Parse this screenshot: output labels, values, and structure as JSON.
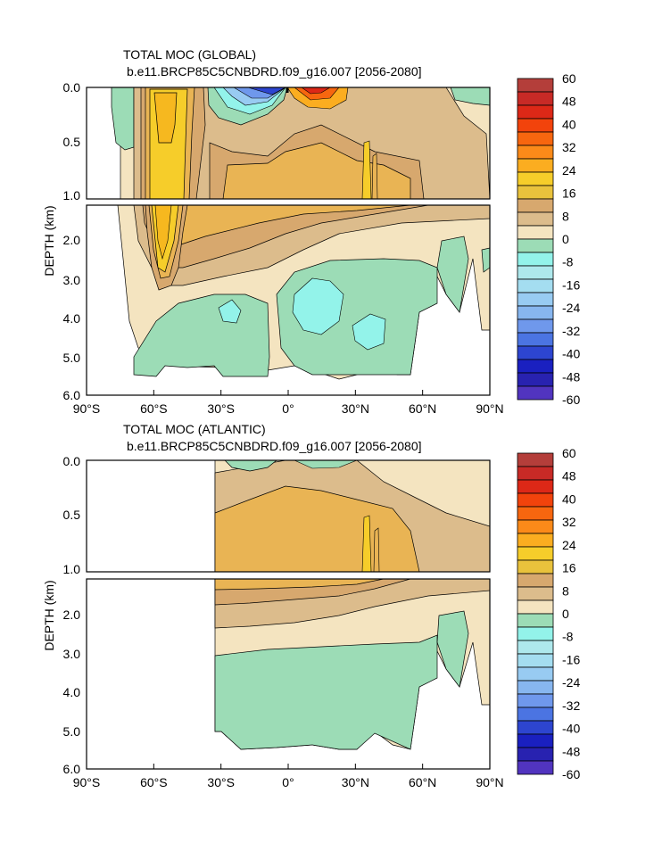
{
  "colors": {
    "colorbar": [
      "#b43e3a",
      "#c82a26",
      "#dd2817",
      "#f2430c",
      "#f7660f",
      "#fb8a19",
      "#fbad20",
      "#f6cd2a",
      "#e9c23c",
      "#d7a86e",
      "#dcbc8c",
      "#f4e4c0",
      "#9cdcb6",
      "#93f3ea",
      "#aee8ec",
      "#a4ddf0",
      "#98cbf2",
      "#87b6ef",
      "#6f98ec",
      "#4b74e2",
      "#2d45d0",
      "#1a20c0",
      "#2822b0",
      "#5134bf"
    ],
    "contour_pos_1": "#f4e4c0",
    "contour_pos_2": "#dcbc8c",
    "contour_pos_3": "#d7a86e",
    "contour_pos_4": "#e9b454",
    "contour_pos_5": "#f6cd2a",
    "contour_pos_6": "#f6b81f",
    "contour_neg_1": "#9cdcb6",
    "contour_neg_2": "#93f3ea"
  },
  "chart_data": [
    {
      "type": "heatmap",
      "title": "TOTAL MOC (GLOBAL)",
      "subtitle": "b.e11.BRCP85C5CNBDRD.f09_g16.007 [2056-2080]",
      "ylabel": "DEPTH (km)",
      "x_ticks": [
        "90°S",
        "60°S",
        "30°S",
        "0°",
        "30°N",
        "60°N",
        "90°N"
      ],
      "y_ticks_upper": [
        "0.0",
        "0.5",
        "1.0"
      ],
      "y_ticks_lower": [
        "2.0",
        "3.0",
        "4.0",
        "5.0",
        "6.0"
      ],
      "xlim": [
        -90,
        90
      ],
      "ylim_upper": [
        0,
        1.0
      ],
      "ylim_lower": [
        1.0,
        6.0
      ],
      "contour_levels_sv": [
        -60,
        -56,
        -52,
        -48,
        -44,
        -40,
        -36,
        -32,
        -28,
        -24,
        -20,
        -16,
        -12,
        -8,
        -4,
        0,
        4,
        8,
        12,
        16,
        20,
        24,
        28,
        32,
        36,
        40,
        44,
        48,
        52,
        56,
        60
      ],
      "colorbar_labels": [
        "60",
        "48",
        "40",
        "32",
        "24",
        "16",
        "8",
        "0",
        "-8",
        "-16",
        "-24",
        "-32",
        "-40",
        "-48",
        "-60"
      ]
    },
    {
      "type": "heatmap",
      "title": "TOTAL MOC (ATLANTIC)",
      "subtitle": "b.e11.BRCP85C5CNBDRD.f09_g16.007 [2056-2080]",
      "ylabel": "DEPTH (km)",
      "x_ticks": [
        "90°S",
        "60°S",
        "30°S",
        "0°",
        "30°N",
        "60°N",
        "90°N"
      ],
      "y_ticks_upper": [
        "0.0",
        "0.5",
        "1.0"
      ],
      "y_ticks_lower": [
        "2.0",
        "3.0",
        "4.0",
        "5.0",
        "6.0"
      ],
      "xlim": [
        -90,
        90
      ],
      "ylim_upper": [
        0,
        1.0
      ],
      "ylim_lower": [
        1.0,
        6.0
      ],
      "contour_levels_sv": [
        -60,
        -56,
        -52,
        -48,
        -44,
        -40,
        -36,
        -32,
        -28,
        -24,
        -20,
        -16,
        -12,
        -8,
        -4,
        0,
        4,
        8,
        12,
        16,
        20,
        24,
        28,
        32,
        36,
        40,
        44,
        48,
        52,
        56,
        60
      ],
      "colorbar_labels": [
        "60",
        "48",
        "40",
        "32",
        "24",
        "16",
        "8",
        "0",
        "-8",
        "-16",
        "-24",
        "-32",
        "-40",
        "-48",
        "-60"
      ]
    }
  ]
}
